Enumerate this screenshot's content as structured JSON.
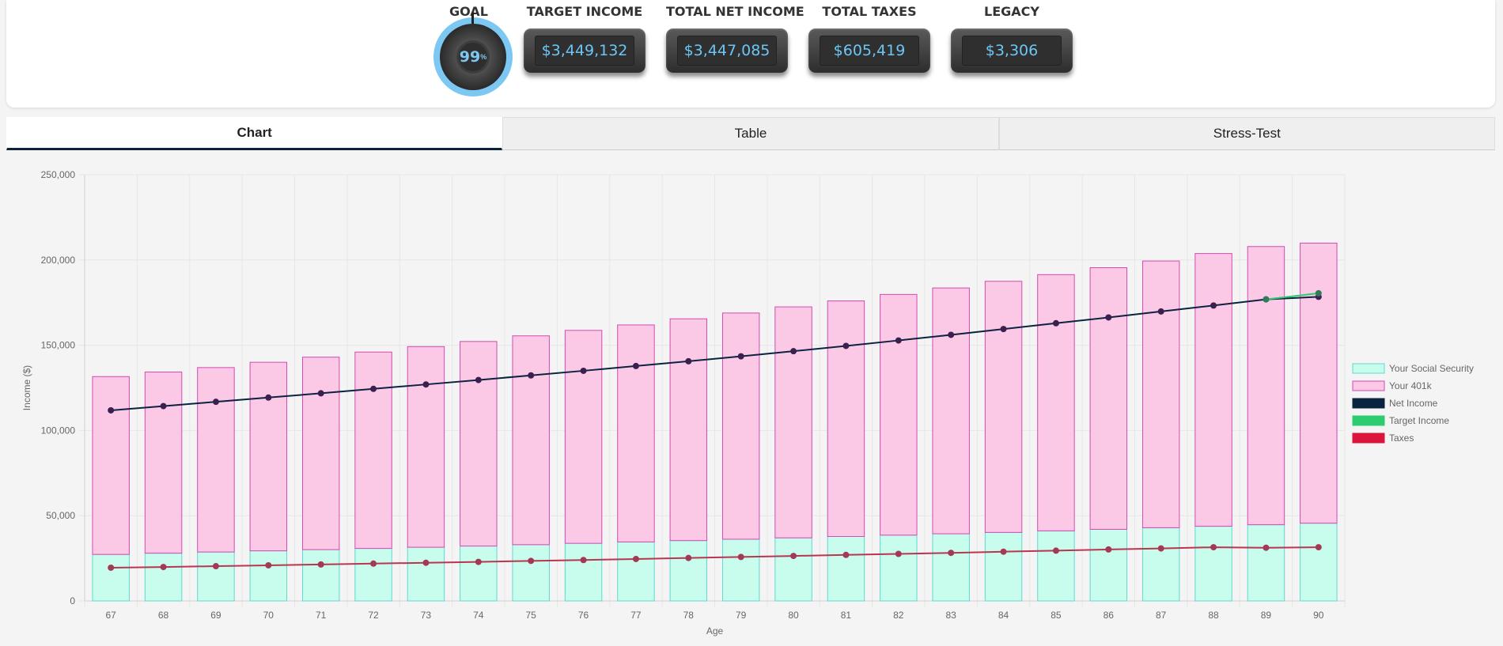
{
  "goal": {
    "title": "GOAL",
    "value": "99",
    "unit": "%"
  },
  "metrics": [
    {
      "title": "TARGET INCOME",
      "value": "$3,449,132"
    },
    {
      "title": "TOTAL NET INCOME",
      "value": "$3,447,085"
    },
    {
      "title": "TOTAL TAXES",
      "value": "$605,419"
    },
    {
      "title": "LEGACY",
      "value": "$3,306"
    }
  ],
  "tabs": [
    {
      "label": "Chart",
      "active": true
    },
    {
      "label": "Table",
      "active": false
    },
    {
      "label": "Stress-Test",
      "active": false
    }
  ],
  "colors": {
    "social_security": "#c8fcec",
    "social_security_border": "#5fd8d0",
    "k401": "#fbc9e6",
    "k401_border": "#d34ab0",
    "net_income": "#0c2340",
    "target_income": "#2ecc71",
    "taxes": "#dc143c",
    "accent": "#7cc8f2"
  },
  "chart_data": {
    "type": "bar",
    "xlabel": "Age",
    "ylabel": "Income ($)",
    "ylim": [
      0,
      250000
    ],
    "yticks": [
      "0",
      "50,000",
      "100,000",
      "150,000",
      "200,000",
      "250,000"
    ],
    "grid": true,
    "legend_position": "right",
    "categories": [
      "67",
      "68",
      "69",
      "70",
      "71",
      "72",
      "73",
      "74",
      "75",
      "76",
      "77",
      "78",
      "79",
      "80",
      "81",
      "82",
      "83",
      "84",
      "85",
      "86",
      "87",
      "88",
      "89",
      "90"
    ],
    "series": [
      {
        "name": "Your Social Security",
        "kind": "bar-stacked",
        "values": [
          27300,
          28000,
          28700,
          29400,
          30100,
          30800,
          31500,
          32200,
          33000,
          33800,
          34600,
          35400,
          36200,
          37000,
          37800,
          38600,
          39400,
          40200,
          41100,
          42000,
          42900,
          43800,
          44700,
          45600
        ]
      },
      {
        "name": "Your 401k",
        "kind": "bar-stacked",
        "values": [
          104300,
          106300,
          108200,
          110600,
          112900,
          115200,
          117700,
          120000,
          122500,
          124900,
          127300,
          130100,
          132700,
          135500,
          138200,
          141200,
          144200,
          147300,
          150300,
          153500,
          156500,
          160000,
          163200,
          164300
        ]
      },
      {
        "name": "Net Income",
        "kind": "line",
        "values": [
          111800,
          114300,
          116800,
          119300,
          121800,
          124400,
          127000,
          129600,
          132300,
          135000,
          137800,
          140600,
          143500,
          146500,
          149600,
          152800,
          156100,
          159500,
          162900,
          166300,
          169800,
          173300,
          176900,
          178400
        ]
      },
      {
        "name": "Target Income",
        "kind": "line",
        "values": [
          null,
          null,
          null,
          null,
          null,
          null,
          null,
          null,
          null,
          null,
          null,
          null,
          null,
          null,
          null,
          null,
          null,
          null,
          null,
          null,
          null,
          null,
          176900,
          180500
        ]
      },
      {
        "name": "Taxes",
        "kind": "line",
        "values": [
          19500,
          19900,
          20400,
          20900,
          21400,
          21900,
          22400,
          22900,
          23500,
          24000,
          24600,
          25200,
          25800,
          26400,
          27000,
          27600,
          28200,
          28900,
          29500,
          30200,
          30800,
          31500,
          31200,
          31500
        ]
      }
    ]
  }
}
